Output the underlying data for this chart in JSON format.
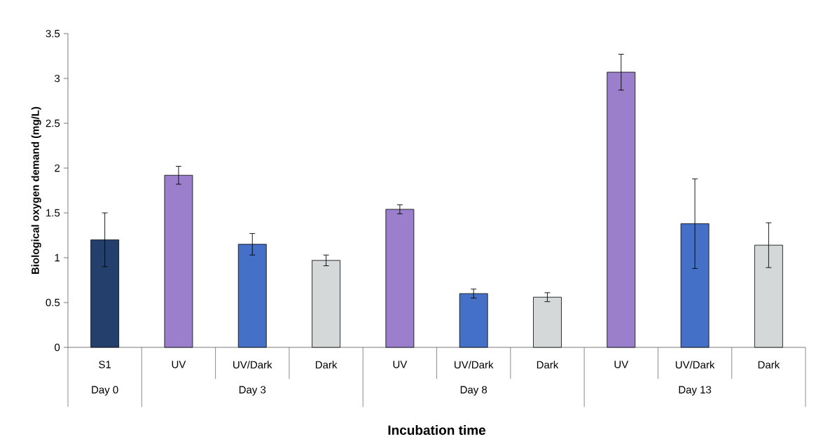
{
  "chart_data": {
    "type": "bar",
    "xlabel": "Incubation time",
    "ylabel": "Biological oxygen demand (mg/L)",
    "categories": [
      "S1",
      "UV",
      "UV/Dark",
      "Dark",
      "UV",
      "UV/Dark",
      "Dark",
      "UV",
      "UV/Dark",
      "Dark"
    ],
    "values": [
      1.2,
      1.92,
      1.15,
      0.97,
      1.54,
      0.6,
      0.56,
      3.07,
      1.38,
      1.14
    ],
    "errors": [
      0.3,
      0.1,
      0.12,
      0.06,
      0.05,
      0.05,
      0.05,
      0.2,
      0.5,
      0.25
    ],
    "colors": [
      "#243f6b",
      "#9b7fcc",
      "#4470c8",
      "#d4d8d8",
      "#9b7fcc",
      "#4470c8",
      "#d4d8d8",
      "#9b7fcc",
      "#4470c8",
      "#d4d8d8"
    ],
    "ylim": [
      0,
      3.5
    ],
    "yticks": [
      0,
      0.5,
      1,
      1.5,
      2,
      2.5,
      3,
      3.5
    ],
    "annotations": [
      "Day 0",
      "Day 3",
      "Day 8",
      "Day 13"
    ]
  }
}
